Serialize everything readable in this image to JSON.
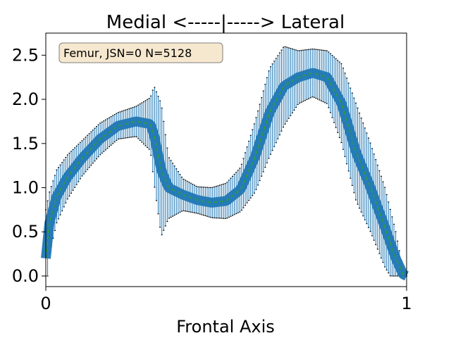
{
  "chart_data": {
    "type": "line",
    "title": "Medial <-----|-----> Lateral",
    "xlabel": "Frontal Axis",
    "ylabel": "",
    "xlim": [
      0,
      1
    ],
    "ylim": [
      -0.12,
      2.75
    ],
    "x_ticks": [
      {
        "value": 0,
        "label": "0"
      },
      {
        "value": 1,
        "label": "1"
      }
    ],
    "y_ticks": [
      {
        "value": 0.0,
        "label": "0.0"
      },
      {
        "value": 0.5,
        "label": "0.5"
      },
      {
        "value": 1.0,
        "label": "1.0"
      },
      {
        "value": 1.5,
        "label": "1.5"
      },
      {
        "value": 2.0,
        "label": "2.0"
      },
      {
        "value": 2.5,
        "label": "2.5"
      }
    ],
    "grid": false,
    "annotation": "Femur, JSN=0 N=5128",
    "colors": {
      "errorbar": "#1f77b4",
      "mean_line": "#2ca02c",
      "cap": "#000000",
      "annotation_fill": "#f6e8cf",
      "annotation_border": "#7f7f7f"
    },
    "profile_points": [
      {
        "x": 0.0,
        "y": 0.2,
        "err": 0.55
      },
      {
        "x": 0.01,
        "y": 0.6,
        "err": 0.35
      },
      {
        "x": 0.03,
        "y": 0.9,
        "err": 0.3
      },
      {
        "x": 0.06,
        "y": 1.12,
        "err": 0.25
      },
      {
        "x": 0.1,
        "y": 1.33,
        "err": 0.2
      },
      {
        "x": 0.15,
        "y": 1.55,
        "err": 0.18
      },
      {
        "x": 0.2,
        "y": 1.7,
        "err": 0.15
      },
      {
        "x": 0.25,
        "y": 1.75,
        "err": 0.17
      },
      {
        "x": 0.29,
        "y": 1.72,
        "err": 0.3
      },
      {
        "x": 0.3,
        "y": 1.6,
        "err": 0.55
      },
      {
        "x": 0.32,
        "y": 1.2,
        "err": 0.75
      },
      {
        "x": 0.34,
        "y": 1.0,
        "err": 0.35
      },
      {
        "x": 0.38,
        "y": 0.92,
        "err": 0.18
      },
      {
        "x": 0.42,
        "y": 0.86,
        "err": 0.15
      },
      {
        "x": 0.46,
        "y": 0.83,
        "err": 0.17
      },
      {
        "x": 0.5,
        "y": 0.85,
        "err": 0.2
      },
      {
        "x": 0.54,
        "y": 0.98,
        "err": 0.25
      },
      {
        "x": 0.58,
        "y": 1.35,
        "err": 0.4
      },
      {
        "x": 0.62,
        "y": 1.85,
        "err": 0.5
      },
      {
        "x": 0.66,
        "y": 2.15,
        "err": 0.45
      },
      {
        "x": 0.7,
        "y": 2.25,
        "err": 0.3
      },
      {
        "x": 0.74,
        "y": 2.3,
        "err": 0.27
      },
      {
        "x": 0.78,
        "y": 2.25,
        "err": 0.3
      },
      {
        "x": 0.82,
        "y": 1.95,
        "err": 0.45
      },
      {
        "x": 0.86,
        "y": 1.4,
        "err": 0.55
      },
      {
        "x": 0.9,
        "y": 1.0,
        "err": 0.5
      },
      {
        "x": 0.94,
        "y": 0.55,
        "err": 0.45
      },
      {
        "x": 0.97,
        "y": 0.2,
        "err": 0.3
      },
      {
        "x": 0.99,
        "y": 0.02,
        "err": 0.05
      },
      {
        "x": 1.0,
        "y": 0.0,
        "err": 0.02
      }
    ]
  }
}
